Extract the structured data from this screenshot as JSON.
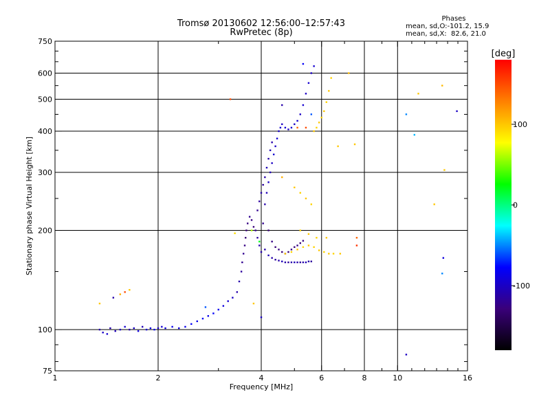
{
  "header": {
    "title": "Tromsø 20130602 12:56:00–12:57:43",
    "subtitle": "RwPretec (8p)"
  },
  "phases_box": {
    "heading": "Phases",
    "o_line": "mean, sd,O:-101.2, 15.9",
    "x_line": "mean, sd,X:  82.6, 21.0"
  },
  "colorbar": {
    "label": "[deg]",
    "ticks": [
      {
        "value": 100,
        "label": "100"
      },
      {
        "value": 0,
        "label": "0"
      },
      {
        "value": -100,
        "label": "-100"
      }
    ],
    "range": [
      -180,
      180
    ],
    "colors": [
      "#000000",
      "#3a007a",
      "#0000ff",
      "#00ffff",
      "#00ff00",
      "#ffff00",
      "#ff8000",
      "#ff0000"
    ]
  },
  "chart_data": {
    "type": "scatter",
    "title": "Tromsø 20130602 12:56:00–12:57:43",
    "subtitle": "RwPretec (8p)",
    "xlabel": "Frequency [MHz]",
    "ylabel": "Stationary phase Virtual Height [km]",
    "xscale": "log",
    "yscale": "log",
    "xlim": [
      1,
      16
    ],
    "ylim": [
      75,
      750
    ],
    "x_ticks": [
      {
        "value": 1,
        "label": "1"
      },
      {
        "value": 2,
        "label": "2"
      },
      {
        "value": 4,
        "label": "4"
      },
      {
        "value": 6,
        "label": "6"
      },
      {
        "value": 8,
        "label": "8"
      },
      {
        "value": 10,
        "label": "10"
      },
      {
        "value": 16,
        "label": "16"
      }
    ],
    "x_gridlines": [
      2,
      4,
      6,
      8,
      10
    ],
    "y_ticks": [
      {
        "value": 75,
        "label": "75"
      },
      {
        "value": 100,
        "label": "100"
      },
      {
        "value": 200,
        "label": "200"
      },
      {
        "value": 300,
        "label": "300"
      },
      {
        "value": 400,
        "label": "400"
      },
      {
        "value": 500,
        "label": "500"
      },
      {
        "value": 600,
        "label": "600"
      },
      {
        "value": 750,
        "label": "750"
      }
    ],
    "y_gridlines": [
      100,
      200,
      300,
      400,
      500,
      600
    ],
    "grid": true,
    "color_axis": "phase [deg]",
    "series": [
      {
        "name": "O",
        "points": [
          [
            1.35,
            100,
            -110
          ],
          [
            1.38,
            98,
            -100
          ],
          [
            1.42,
            97,
            -95
          ],
          [
            1.45,
            101,
            -110
          ],
          [
            1.5,
            99,
            -105
          ],
          [
            1.55,
            100,
            -100
          ],
          [
            1.6,
            102,
            -95
          ],
          [
            1.65,
            100,
            -110
          ],
          [
            1.7,
            101,
            -100
          ],
          [
            1.75,
            99,
            -90
          ],
          [
            1.8,
            102,
            -105
          ],
          [
            1.85,
            100,
            -95
          ],
          [
            1.9,
            101,
            -90
          ],
          [
            1.95,
            100,
            -85
          ],
          [
            2.0,
            101,
            -100
          ],
          [
            2.05,
            102,
            -95
          ],
          [
            2.1,
            101,
            -90
          ],
          [
            2.2,
            102,
            -85
          ],
          [
            2.3,
            101,
            -90
          ],
          [
            2.4,
            102,
            -85
          ],
          [
            2.5,
            104,
            -80
          ],
          [
            2.6,
            106,
            -85
          ],
          [
            2.7,
            108,
            -80
          ],
          [
            2.8,
            110,
            -85
          ],
          [
            2.9,
            112,
            -80
          ],
          [
            3.0,
            115,
            -85
          ],
          [
            3.1,
            118,
            -90
          ],
          [
            3.2,
            122,
            -95
          ],
          [
            3.3,
            125,
            -100
          ],
          [
            3.4,
            130,
            -110
          ],
          [
            3.45,
            140,
            -110
          ],
          [
            3.5,
            150,
            -115
          ],
          [
            3.52,
            160,
            -120
          ],
          [
            3.55,
            170,
            -120
          ],
          [
            3.58,
            180,
            -125
          ],
          [
            3.6,
            190,
            -130
          ],
          [
            3.62,
            200,
            -130
          ],
          [
            3.65,
            210,
            -125
          ],
          [
            3.7,
            220,
            -120
          ],
          [
            3.75,
            215,
            -125
          ],
          [
            3.8,
            205,
            -130
          ],
          [
            3.85,
            200,
            -120
          ],
          [
            3.9,
            190,
            -115
          ],
          [
            3.95,
            180,
            -110
          ],
          [
            4.0,
            172,
            -110
          ],
          [
            4.05,
            210,
            -120
          ],
          [
            4.1,
            240,
            -110
          ],
          [
            4.15,
            260,
            -105
          ],
          [
            4.2,
            280,
            -100
          ],
          [
            4.25,
            300,
            -105
          ],
          [
            4.3,
            320,
            -100
          ],
          [
            4.35,
            340,
            -95
          ],
          [
            4.4,
            360,
            -100
          ],
          [
            4.45,
            380,
            -95
          ],
          [
            4.5,
            400,
            -100
          ],
          [
            4.55,
            410,
            -95
          ],
          [
            4.6,
            420,
            -100
          ],
          [
            4.7,
            410,
            -95
          ],
          [
            4.8,
            405,
            -100
          ],
          [
            4.9,
            410,
            -95
          ],
          [
            5.0,
            420,
            -100
          ],
          [
            5.1,
            430,
            -95
          ],
          [
            5.2,
            450,
            -100
          ],
          [
            5.3,
            480,
            -95
          ],
          [
            5.4,
            520,
            -100
          ],
          [
            5.5,
            560,
            -95
          ],
          [
            5.6,
            600,
            -100
          ],
          [
            5.7,
            630,
            -95
          ],
          [
            4.1,
            175,
            -110
          ],
          [
            4.2,
            168,
            -105
          ],
          [
            4.3,
            165,
            -110
          ],
          [
            4.4,
            163,
            -115
          ],
          [
            4.5,
            162,
            -110
          ],
          [
            4.6,
            161,
            -105
          ],
          [
            4.7,
            160,
            -110
          ],
          [
            4.8,
            160,
            -115
          ],
          [
            4.9,
            160,
            -110
          ],
          [
            5.0,
            160,
            -105
          ],
          [
            5.1,
            160,
            -110
          ],
          [
            5.2,
            160,
            -115
          ],
          [
            5.3,
            160,
            -110
          ],
          [
            5.4,
            160,
            -105
          ],
          [
            5.5,
            161,
            -110
          ],
          [
            5.6,
            161,
            -115
          ],
          [
            3.9,
            230,
            -120
          ],
          [
            3.95,
            245,
            -115
          ],
          [
            4.0,
            260,
            -110
          ],
          [
            4.05,
            275,
            -115
          ],
          [
            4.1,
            290,
            -110
          ],
          [
            4.15,
            310,
            -105
          ],
          [
            4.2,
            330,
            -110
          ],
          [
            4.25,
            350,
            -105
          ],
          [
            4.3,
            370,
            -110
          ],
          [
            4.2,
            200,
            -130
          ],
          [
            4.3,
            185,
            -125
          ],
          [
            4.4,
            178,
            -130
          ],
          [
            4.5,
            175,
            -125
          ],
          [
            4.6,
            172,
            -130
          ],
          [
            4.7,
            170,
            -125
          ],
          [
            4.8,
            172,
            -130
          ],
          [
            4.9,
            175,
            -125
          ],
          [
            5.0,
            178,
            -130
          ],
          [
            5.1,
            180,
            -125
          ],
          [
            5.2,
            183,
            -130
          ],
          [
            5.3,
            186,
            -125
          ],
          [
            1.48,
            125,
            -110
          ],
          [
            2.75,
            117,
            -60
          ],
          [
            4.0,
            109,
            -100
          ],
          [
            4.6,
            480,
            -110
          ],
          [
            5.3,
            640,
            -80
          ],
          [
            5.6,
            450,
            -60
          ],
          [
            10.6,
            84,
            -100
          ],
          [
            10.6,
            450,
            -50
          ],
          [
            11.2,
            390,
            -40
          ],
          [
            13.5,
            148,
            -50
          ],
          [
            13.6,
            165,
            -90
          ],
          [
            14.9,
            460,
            -100
          ]
        ]
      },
      {
        "name": "X",
        "points": [
          [
            5.7,
            400,
            100
          ],
          [
            5.8,
            410,
            95
          ],
          [
            5.9,
            425,
            100
          ],
          [
            6.0,
            440,
            95
          ],
          [
            6.1,
            460,
            100
          ],
          [
            6.2,
            490,
            95
          ],
          [
            6.3,
            530,
            100
          ],
          [
            6.4,
            580,
            95
          ],
          [
            4.7,
            170,
            100
          ],
          [
            4.9,
            172,
            95
          ],
          [
            5.1,
            175,
            100
          ],
          [
            5.3,
            178,
            95
          ],
          [
            5.5,
            180,
            100
          ],
          [
            5.7,
            178,
            95
          ],
          [
            5.9,
            174,
            100
          ],
          [
            6.1,
            172,
            95
          ],
          [
            6.3,
            170,
            100
          ],
          [
            6.5,
            170,
            95
          ],
          [
            6.8,
            170,
            100
          ],
          [
            5.0,
            270,
            100
          ],
          [
            5.2,
            260,
            95
          ],
          [
            5.4,
            250,
            100
          ],
          [
            5.6,
            240,
            95
          ],
          [
            5.2,
            200,
            95
          ],
          [
            5.5,
            195,
            100
          ],
          [
            5.8,
            190,
            95
          ],
          [
            6.2,
            190,
            100
          ],
          [
            1.35,
            120,
            100
          ],
          [
            1.55,
            128,
            110
          ],
          [
            1.65,
            132,
            100
          ],
          [
            3.35,
            196,
            90
          ],
          [
            3.75,
            200,
            60
          ],
          [
            3.8,
            120,
            100
          ],
          [
            3.95,
            185,
            20
          ],
          [
            4.6,
            290,
            110
          ],
          [
            5.4,
            410,
            150
          ],
          [
            6.7,
            360,
            100
          ],
          [
            7.2,
            600,
            105
          ],
          [
            7.5,
            365,
            100
          ],
          [
            11.5,
            520,
            100
          ],
          [
            12.8,
            240,
            100
          ],
          [
            13.5,
            550,
            105
          ],
          [
            13.7,
            305,
            100
          ],
          [
            1.6,
            130,
            150
          ],
          [
            3.25,
            500,
            150
          ],
          [
            5.1,
            410,
            140
          ],
          [
            7.6,
            190,
            140
          ],
          [
            7.6,
            180,
            160
          ]
        ]
      }
    ]
  }
}
